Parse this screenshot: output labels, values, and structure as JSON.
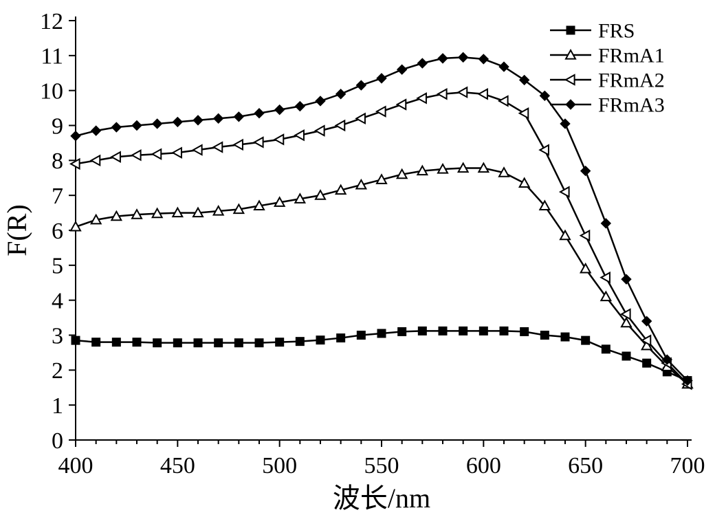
{
  "chart": {
    "type": "line",
    "background_color": "#ffffff",
    "axis_color": "#000000",
    "axis_line_width": 2,
    "series_line_width": 2.5,
    "xlim": [
      400,
      700
    ],
    "ylim": [
      0,
      12
    ],
    "xticks": [
      400,
      450,
      500,
      550,
      600,
      650,
      700
    ],
    "yticks": [
      0,
      1,
      2,
      3,
      4,
      5,
      6,
      7,
      8,
      9,
      10,
      11,
      12
    ],
    "minor_xtick_count_between": 4,
    "tick_length": 10,
    "minor_tick_length": 6,
    "xlabel": "波长/nm",
    "ylabel": "F(R)",
    "xlabel_fontsize": 40,
    "ylabel_fontsize": 40,
    "xtick_fontsize": 34,
    "ytick_fontsize": 34,
    "legend_fontsize": 30,
    "series_common_x": [
      400,
      410,
      420,
      430,
      440,
      450,
      460,
      470,
      480,
      490,
      500,
      510,
      520,
      530,
      540,
      550,
      560,
      570,
      580,
      590,
      600,
      610,
      620,
      630,
      640,
      650,
      660,
      670,
      680,
      690,
      700
    ],
    "series": [
      {
        "name": "FRS",
        "color": "#000000",
        "marker": "square-filled",
        "marker_size": 12,
        "y": [
          2.85,
          2.8,
          2.8,
          2.8,
          2.78,
          2.78,
          2.78,
          2.78,
          2.78,
          2.78,
          2.8,
          2.82,
          2.86,
          2.92,
          3.0,
          3.05,
          3.1,
          3.12,
          3.12,
          3.12,
          3.12,
          3.12,
          3.1,
          3.0,
          2.95,
          2.85,
          2.6,
          2.4,
          2.2,
          1.95,
          1.7,
          1.4
        ]
      },
      {
        "name": "FRmA1",
        "color": "#000000",
        "marker": "triangle-open",
        "marker_size": 14,
        "y": [
          6.1,
          6.3,
          6.4,
          6.45,
          6.48,
          6.5,
          6.5,
          6.55,
          6.6,
          6.7,
          6.8,
          6.9,
          7.0,
          7.15,
          7.3,
          7.45,
          7.6,
          7.7,
          7.75,
          7.78,
          7.78,
          7.65,
          7.35,
          6.7,
          5.85,
          4.9,
          4.1,
          3.35,
          2.7,
          2.1,
          1.6
        ]
      },
      {
        "name": "FRmA2",
        "color": "#000000",
        "marker": "triangle-left-open",
        "marker_size": 14,
        "y": [
          7.9,
          8.0,
          8.1,
          8.15,
          8.18,
          8.22,
          8.3,
          8.38,
          8.45,
          8.52,
          8.6,
          8.72,
          8.85,
          9.0,
          9.2,
          9.4,
          9.6,
          9.78,
          9.9,
          9.95,
          9.9,
          9.7,
          9.35,
          8.3,
          7.1,
          5.85,
          4.65,
          3.6,
          2.85,
          2.2,
          1.6
        ]
      },
      {
        "name": "FRmA3",
        "color": "#000000",
        "marker": "diamond-filled",
        "marker_size": 14,
        "y": [
          8.7,
          8.85,
          8.95,
          9.0,
          9.05,
          9.1,
          9.15,
          9.2,
          9.25,
          9.35,
          9.45,
          9.55,
          9.7,
          9.9,
          10.15,
          10.35,
          10.6,
          10.78,
          10.92,
          10.95,
          10.9,
          10.68,
          10.3,
          9.85,
          9.05,
          7.7,
          6.2,
          4.6,
          3.4,
          2.3,
          1.7
        ]
      }
    ],
    "legend": {
      "position": "top-right",
      "items": [
        "FRS",
        "FRmA1",
        "FRmA2",
        "FRmA3"
      ]
    }
  }
}
